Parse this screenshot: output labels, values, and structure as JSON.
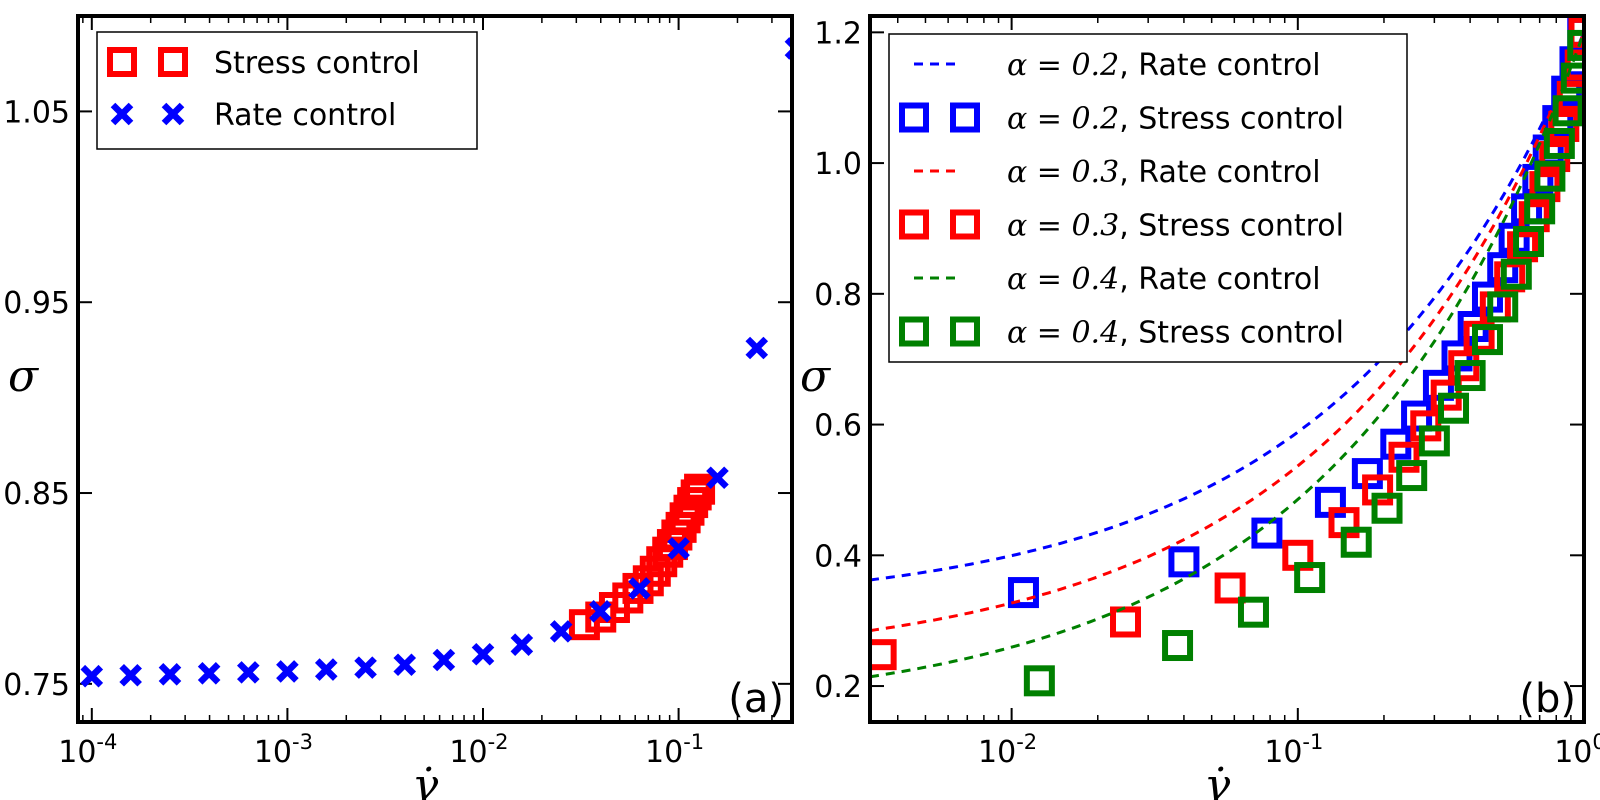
{
  "chart_data": [
    {
      "type": "scatter",
      "panel_label": "(a)",
      "xscale": "log",
      "xlim": [
        8.5e-05,
        0.38
      ],
      "ylim": [
        0.73,
        1.1
      ],
      "xlabel": "γ̇",
      "ylabel": "σ",
      "xticks": [
        {
          "value": 0.0001,
          "base": "10",
          "exp": "-4"
        },
        {
          "value": 0.001,
          "base": "10",
          "exp": "-3"
        },
        {
          "value": 0.01,
          "base": "10",
          "exp": "-2"
        },
        {
          "value": 0.1,
          "base": "10",
          "exp": "-1"
        }
      ],
      "yticks": [
        {
          "value": 0.75,
          "label": "0.75"
        },
        {
          "value": 0.85,
          "label": "0.85"
        },
        {
          "value": 0.95,
          "label": "0.95"
        },
        {
          "value": 1.05,
          "label": "1.05"
        }
      ],
      "legend": {
        "position": "top-left"
      },
      "series": [
        {
          "name": "Stress control",
          "marker": "square",
          "color": "#ff0000",
          "points": [
            [
              0.033,
              0.781
            ],
            [
              0.04,
              0.785
            ],
            [
              0.047,
              0.79
            ],
            [
              0.055,
              0.795
            ],
            [
              0.062,
              0.8
            ],
            [
              0.07,
              0.804
            ],
            [
              0.076,
              0.809
            ],
            [
              0.082,
              0.814
            ],
            [
              0.088,
              0.819
            ],
            [
              0.093,
              0.823
            ],
            [
              0.098,
              0.828
            ],
            [
              0.103,
              0.832
            ],
            [
              0.108,
              0.837
            ],
            [
              0.113,
              0.841
            ],
            [
              0.118,
              0.845
            ],
            [
              0.123,
              0.849
            ],
            [
              0.128,
              0.852
            ]
          ]
        },
        {
          "name": "Rate control",
          "marker": "x",
          "color": "#0000ff",
          "points": [
            [
              0.0001,
              0.754
            ],
            [
              0.000158,
              0.7545
            ],
            [
              0.000251,
              0.755
            ],
            [
              0.000398,
              0.7555
            ],
            [
              0.000631,
              0.756
            ],
            [
              0.001,
              0.7565
            ],
            [
              0.00158,
              0.7575
            ],
            [
              0.00251,
              0.7585
            ],
            [
              0.00398,
              0.76
            ],
            [
              0.00631,
              0.7625
            ],
            [
              0.01,
              0.7655
            ],
            [
              0.0158,
              0.7705
            ],
            [
              0.0251,
              0.7775
            ],
            [
              0.0398,
              0.788
            ],
            [
              0.0631,
              0.8
            ],
            [
              0.1,
              0.821
            ],
            [
              0.158,
              0.858
            ],
            [
              0.251,
              0.926
            ],
            [
              0.398,
              1.083
            ]
          ]
        }
      ]
    },
    {
      "type": "scatter+line",
      "panel_label": "(b)",
      "xscale": "log",
      "xlim": [
        0.0032,
        1.0
      ],
      "ylim": [
        0.145,
        1.225
      ],
      "xlabel": "γ̇",
      "ylabel": "σ",
      "xticks": [
        {
          "value": 0.01,
          "base": "10",
          "exp": "-2"
        },
        {
          "value": 0.1,
          "base": "10",
          "exp": "-1"
        },
        {
          "value": 1.0,
          "base": "10",
          "exp": "0"
        }
      ],
      "yticks": [
        {
          "value": 0.2,
          "label": "0.2"
        },
        {
          "value": 0.4,
          "label": "0.4"
        },
        {
          "value": 0.6,
          "label": "0.6"
        },
        {
          "value": 0.8,
          "label": "0.8"
        },
        {
          "value": 1.0,
          "label": "1.0"
        },
        {
          "value": 1.2,
          "label": "1.2"
        }
      ],
      "legend": {
        "position": "top-left"
      },
      "series": [
        {
          "name": "α=0.2, Rate control",
          "alpha": "α = 0.2",
          "control": ", Rate control",
          "style": "dashed",
          "color": "#0000ff",
          "sigma0": 0.315,
          "n": 0.51
        },
        {
          "name": "α=0.2, Stress control",
          "alpha": "α = 0.2",
          "control": ", Stress control",
          "style": "square",
          "color": "#0000ff",
          "points": [
            [
              0.011,
              0.343
            ],
            [
              0.04,
              0.39
            ],
            [
              0.078,
              0.434
            ],
            [
              0.13,
              0.481
            ],
            [
              0.175,
              0.525
            ],
            [
              0.22,
              0.57
            ],
            [
              0.26,
              0.613
            ],
            [
              0.31,
              0.66
            ],
            [
              0.36,
              0.705
            ],
            [
              0.41,
              0.75
            ],
            [
              0.46,
              0.795
            ],
            [
              0.52,
              0.84
            ],
            [
              0.57,
              0.885
            ],
            [
              0.63,
              0.93
            ],
            [
              0.69,
              0.975
            ],
            [
              0.75,
              1.02
            ],
            [
              0.81,
              1.065
            ],
            [
              0.87,
              1.11
            ],
            [
              0.93,
              1.155
            ],
            [
              0.99,
              1.2
            ]
          ]
        },
        {
          "name": "α=0.3, Rate control",
          "alpha": "α = 0.3",
          "control": ", Rate control",
          "style": "dashed",
          "color": "#ff0000",
          "sigma0": 0.23,
          "n": 0.5
        },
        {
          "name": "α=0.3, Stress control",
          "alpha": "α = 0.3",
          "control": ", Stress control",
          "style": "square",
          "color": "#ff0000",
          "points": [
            [
              0.0035,
              0.248
            ],
            [
              0.025,
              0.298
            ],
            [
              0.058,
              0.35
            ],
            [
              0.1,
              0.4
            ],
            [
              0.145,
              0.45
            ],
            [
              0.19,
              0.5
            ],
            [
              0.235,
              0.55
            ],
            [
              0.28,
              0.598
            ],
            [
              0.33,
              0.645
            ],
            [
              0.38,
              0.69
            ],
            [
              0.43,
              0.735
            ],
            [
              0.49,
              0.78
            ],
            [
              0.55,
              0.826
            ],
            [
              0.61,
              0.872
            ],
            [
              0.67,
              0.918
            ],
            [
              0.73,
              0.964
            ],
            [
              0.79,
              1.01
            ],
            [
              0.85,
              1.056
            ],
            [
              0.91,
              1.102
            ],
            [
              0.97,
              1.15
            ],
            [
              1.0,
              1.2
            ]
          ]
        },
        {
          "name": "α=0.4, Rate control",
          "alpha": "α = 0.4",
          "control": ", Rate control",
          "style": "dashed",
          "color": "#008000",
          "sigma0": 0.155,
          "n": 0.5
        },
        {
          "name": "α=0.4, Stress control",
          "alpha": "α = 0.4",
          "control": ", Stress control",
          "style": "square",
          "color": "#008000",
          "points": [
            [
              0.0125,
              0.208
            ],
            [
              0.038,
              0.262
            ],
            [
              0.07,
              0.313
            ],
            [
              0.11,
              0.366
            ],
            [
              0.16,
              0.42
            ],
            [
              0.205,
              0.472
            ],
            [
              0.25,
              0.522
            ],
            [
              0.3,
              0.575
            ],
            [
              0.35,
              0.625
            ],
            [
              0.4,
              0.675
            ],
            [
              0.46,
              0.73
            ],
            [
              0.52,
              0.78
            ],
            [
              0.58,
              0.83
            ],
            [
              0.64,
              0.88
            ],
            [
              0.7,
              0.93
            ],
            [
              0.76,
              0.98
            ],
            [
              0.82,
              1.03
            ],
            [
              0.88,
              1.08
            ],
            [
              0.94,
              1.13
            ],
            [
              0.99,
              1.18
            ]
          ]
        }
      ]
    }
  ]
}
